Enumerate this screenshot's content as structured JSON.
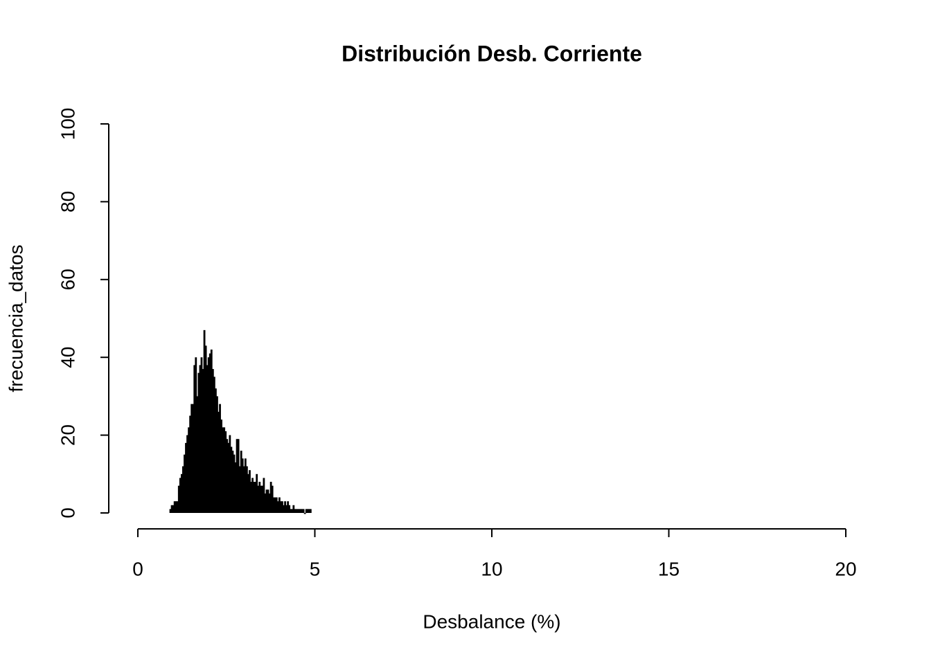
{
  "chart_data": {
    "type": "bar",
    "title": "Distribución Desb. Corriente",
    "xlabel": "Desbalance (%)",
    "ylabel": "frecuencia_datos",
    "color": "#000000",
    "x": [
      0.92,
      0.96,
      1.0,
      1.04,
      1.08,
      1.12,
      1.16,
      1.2,
      1.24,
      1.28,
      1.32,
      1.36,
      1.4,
      1.44,
      1.48,
      1.52,
      1.56,
      1.6,
      1.64,
      1.68,
      1.72,
      1.76,
      1.8,
      1.84,
      1.88,
      1.92,
      1.96,
      2.0,
      2.04,
      2.08,
      2.12,
      2.16,
      2.2,
      2.24,
      2.28,
      2.32,
      2.36,
      2.4,
      2.44,
      2.48,
      2.52,
      2.56,
      2.6,
      2.64,
      2.68,
      2.72,
      2.76,
      2.8,
      2.84,
      2.88,
      2.92,
      2.96,
      3.0,
      3.04,
      3.08,
      3.12,
      3.16,
      3.2,
      3.24,
      3.28,
      3.32,
      3.36,
      3.4,
      3.44,
      3.48,
      3.52,
      3.56,
      3.6,
      3.64,
      3.68,
      3.72,
      3.76,
      3.8,
      3.84,
      3.88,
      3.92,
      3.96,
      4.0,
      4.04,
      4.08,
      4.12,
      4.16,
      4.2,
      4.24,
      4.28,
      4.32,
      4.36,
      4.4,
      4.44,
      4.48,
      4.52,
      4.56,
      4.6,
      4.64,
      4.68,
      4.72,
      4.76,
      4.8,
      4.84,
      4.88
    ],
    "values": [
      1,
      2,
      2,
      3,
      3,
      3,
      7,
      9,
      10,
      12,
      15,
      18,
      20,
      22,
      25,
      28,
      28,
      38,
      40,
      30,
      36,
      38,
      40,
      37,
      47,
      43,
      38,
      40,
      41,
      42,
      37,
      35,
      32,
      30,
      26,
      28,
      24,
      22,
      22,
      21,
      19,
      18,
      20,
      17,
      16,
      15,
      13,
      19,
      19,
      12,
      16,
      14,
      12,
      14,
      12,
      10,
      11,
      8,
      9,
      8,
      8,
      10,
      7,
      8,
      7,
      7,
      9,
      5,
      6,
      6,
      5,
      8,
      7,
      4,
      4,
      4,
      3,
      4,
      3,
      3,
      2,
      3,
      2,
      3,
      2,
      1,
      1,
      2,
      1,
      1,
      1,
      1,
      1,
      1,
      1,
      0,
      1,
      1,
      1,
      1
    ],
    "xlim": [
      0,
      20
    ],
    "xticks": [
      0,
      5,
      10,
      15,
      20
    ],
    "ylim": [
      0,
      100
    ],
    "yticks": [
      0,
      20,
      40,
      60,
      80,
      100
    ]
  }
}
